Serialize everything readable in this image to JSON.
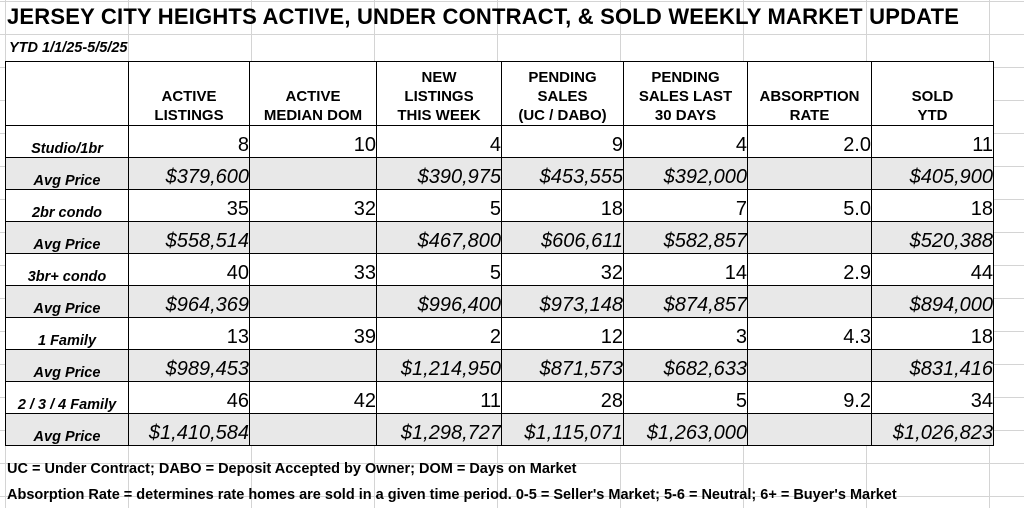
{
  "title": "JERSEY CITY HEIGHTS ACTIVE, UNDER CONTRACT, & SOLD WEEKLY MARKET UPDATE",
  "subtitle": "YTD 1/1/25-5/5/25",
  "columns": [
    [
      "ACTIVE",
      "LISTINGS"
    ],
    [
      "ACTIVE",
      "MEDIAN DOM"
    ],
    [
      "NEW",
      "LISTINGS",
      "THIS WEEK"
    ],
    [
      "PENDING",
      "SALES",
      "(UC / DABO)"
    ],
    [
      "PENDING",
      "SALES LAST",
      "30 DAYS"
    ],
    [
      "ABSORPTION",
      "RATE"
    ],
    [
      "SOLD",
      "YTD"
    ]
  ],
  "rows": [
    {
      "label": "Studio/1br",
      "type": "count",
      "values": [
        "8",
        "10",
        "4",
        "9",
        "4",
        "2.0",
        "11"
      ]
    },
    {
      "label": "Avg Price",
      "type": "price",
      "values": [
        "$379,600",
        "",
        "$390,975",
        "$453,555",
        "$392,000",
        "",
        "$405,900"
      ]
    },
    {
      "label": "2br condo",
      "type": "count",
      "values": [
        "35",
        "32",
        "5",
        "18",
        "7",
        "5.0",
        "18"
      ]
    },
    {
      "label": "Avg Price",
      "type": "price",
      "values": [
        "$558,514",
        "",
        "$467,800",
        "$606,611",
        "$582,857",
        "",
        "$520,388"
      ]
    },
    {
      "label": "3br+ condo",
      "type": "count",
      "values": [
        "40",
        "33",
        "5",
        "32",
        "14",
        "2.9",
        "44"
      ]
    },
    {
      "label": "Avg Price",
      "type": "price",
      "values": [
        "$964,369",
        "",
        "$996,400",
        "$973,148",
        "$874,857",
        "",
        "$894,000"
      ]
    },
    {
      "label": "1 Family",
      "type": "count",
      "values": [
        "13",
        "39",
        "2",
        "12",
        "3",
        "4.3",
        "18"
      ]
    },
    {
      "label": "Avg Price",
      "type": "price",
      "values": [
        "$989,453",
        "",
        "$1,214,950",
        "$871,573",
        "$682,633",
        "",
        "$831,416"
      ]
    },
    {
      "label": "2 / 3 / 4 Family",
      "type": "count",
      "values": [
        "46",
        "42",
        "11",
        "28",
        "5",
        "9.2",
        "34"
      ]
    },
    {
      "label": "Avg Price",
      "type": "price",
      "values": [
        "$1,410,584",
        "",
        "$1,298,727",
        "$1,115,071",
        "$1,263,000",
        "",
        "$1,026,823"
      ]
    }
  ],
  "footnotes": {
    "line1": "UC = Under Contract; DABO = Deposit Accepted by Owner; DOM = Days on Market",
    "line2": "Absorption Rate = determines rate homes are sold in a given time period.  0-5 = Seller's Market; 5-6 = Neutral; 6+ = Buyer's Market"
  }
}
